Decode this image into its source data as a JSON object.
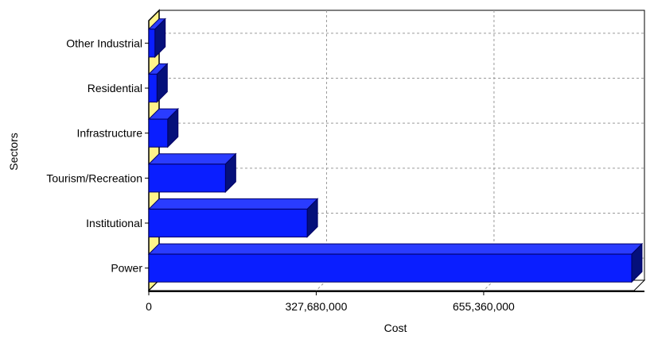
{
  "chart_data": {
    "type": "bar",
    "orientation": "horizontal",
    "style": "3d",
    "categories": [
      "Other Industrial",
      "Residential",
      "Infrastructure",
      "Tourism/Recreation",
      "Institutional",
      "Power"
    ],
    "values": [
      12000000,
      16000000,
      37000000,
      150000000,
      310000000,
      945000000
    ],
    "xlabel": "Cost",
    "ylabel": "Sectors",
    "xticks": [
      "0",
      "327,680,000",
      "655,360,000"
    ],
    "xtick_values": [
      0,
      327680000,
      655360000
    ],
    "xlim": [
      0,
      970000000
    ],
    "grid": true,
    "legend": "none",
    "colors": {
      "bar_front": "#0a1eff",
      "bar_top": "#2a3cff",
      "bar_side": "#05107a",
      "bar_edge": "#000066",
      "wall": "#fff38a",
      "grid": "#9a9a9a"
    }
  }
}
